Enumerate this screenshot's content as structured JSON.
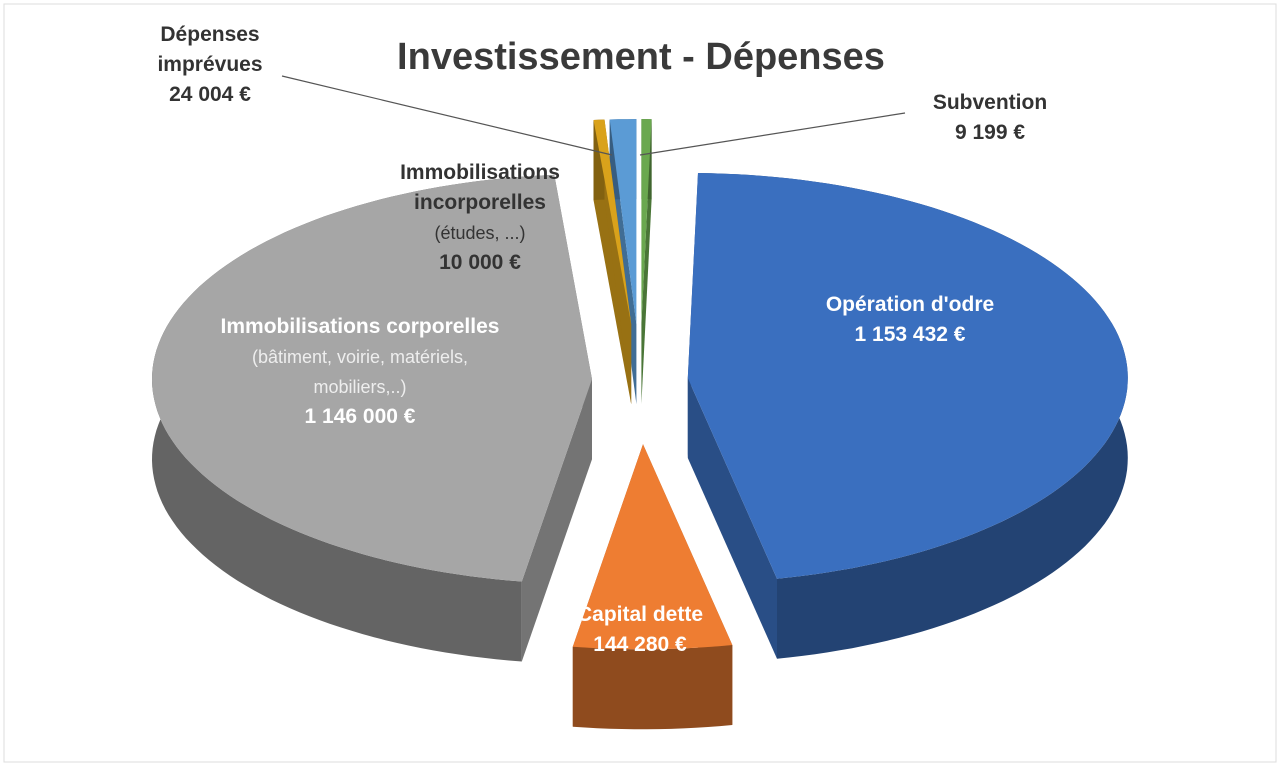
{
  "chart_data": {
    "type": "pie",
    "title": "Investissement - Dépenses",
    "categories": [
      "Subvention",
      "Opération d'odre",
      "Capital dette",
      "Immobilisations corporelles",
      "Immobilisations incorporelles",
      "Dépenses imprévues"
    ],
    "details": [
      null,
      null,
      null,
      "(bâtiment, voirie, matériels, mobiliers,..)",
      "(études, ...)",
      null
    ],
    "values": [
      9199,
      1153432,
      144280,
      1146000,
      10000,
      24004
    ],
    "value_labels": [
      "9 199 €",
      "1 153 432 €",
      "144 280 €",
      "1 146 000 €",
      "10 000 €",
      "24 004 €"
    ],
    "colors": [
      "#6aa84f",
      "#3a6fbf",
      "#ee7d32",
      "#a6a6a6",
      "#d9a21b",
      "#5b9bd5"
    ]
  }
}
